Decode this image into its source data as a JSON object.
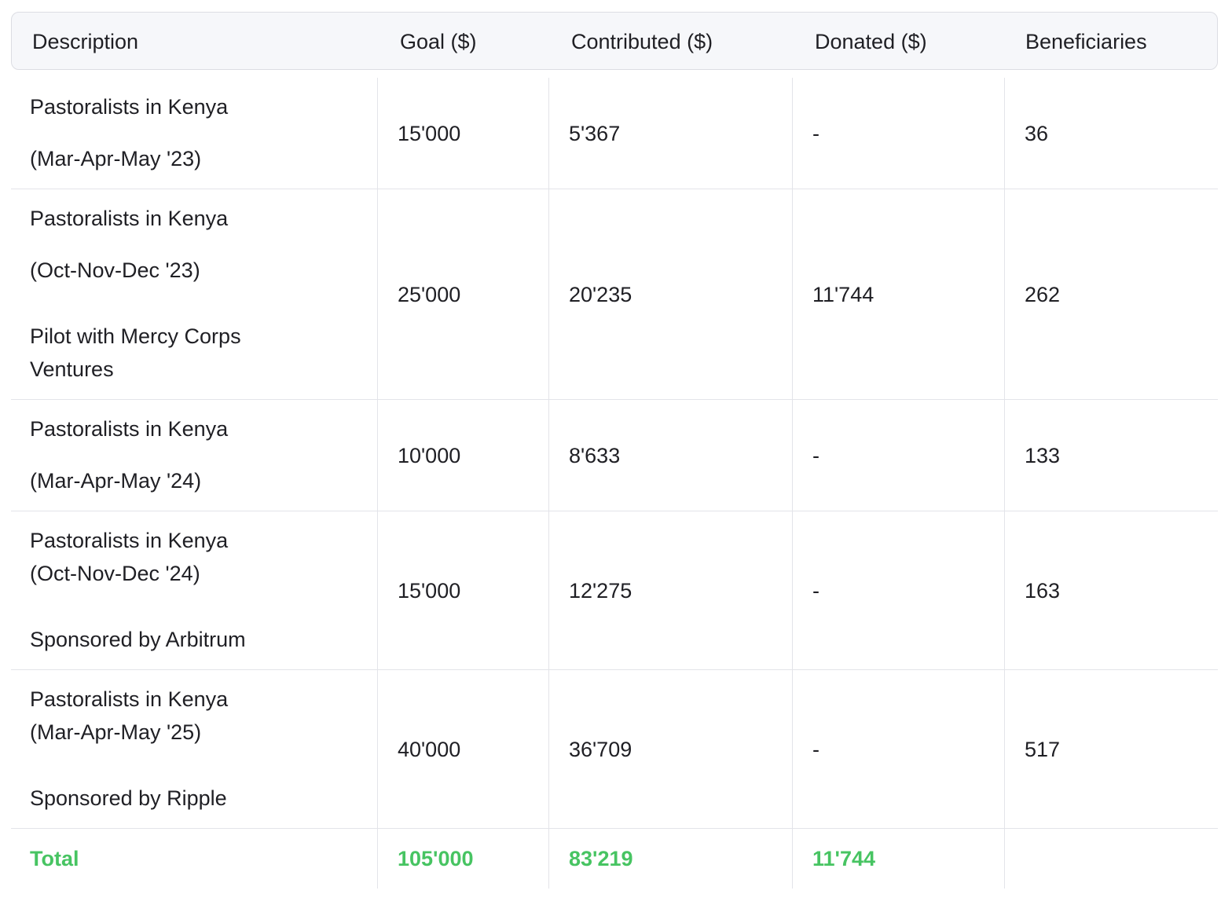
{
  "table": {
    "headers": {
      "description": "Description",
      "goal": "Goal ($)",
      "contributed": "Contributed ($)",
      "donated": "Donated ($)",
      "beneficiaries": "Beneficiaries"
    },
    "rows": [
      {
        "desc_lines": [
          "Pastoralists in Kenya",
          "(Mar-Apr-May '23)"
        ],
        "goal": "15'000",
        "contributed": "5'367",
        "donated": "-",
        "beneficiaries": "36"
      },
      {
        "desc_lines": [
          "Pastoralists in Kenya",
          "(Oct-Nov-Dec '23)",
          "Pilot with Mercy Corps",
          "Ventures"
        ],
        "goal": "25'000",
        "contributed": "20'235",
        "donated": "11'744",
        "beneficiaries": "262"
      },
      {
        "desc_lines": [
          "Pastoralists in Kenya",
          "(Mar-Apr-May '24)"
        ],
        "goal": "10'000",
        "contributed": "8'633",
        "donated": "-",
        "beneficiaries": "133"
      },
      {
        "desc_lines": [
          "Pastoralists in Kenya",
          "(Oct-Nov-Dec '24)",
          "Sponsored by Arbitrum"
        ],
        "goal": "15'000",
        "contributed": "12'275",
        "donated": "-",
        "beneficiaries": "163"
      },
      {
        "desc_lines": [
          "Pastoralists in Kenya",
          "(Mar-Apr-May '25)",
          "Sponsored by Ripple"
        ],
        "goal": "40'000",
        "contributed": "36'709",
        "donated": "-",
        "beneficiaries": "517"
      }
    ],
    "total": {
      "label": "Total",
      "goal": "105'000",
      "contributed": "83'219",
      "donated": "11'744",
      "beneficiaries": ""
    }
  },
  "colors": {
    "total_text": "#47c462",
    "header_bg": "#f6f7fa",
    "grid_line": "#e3e4e9"
  }
}
